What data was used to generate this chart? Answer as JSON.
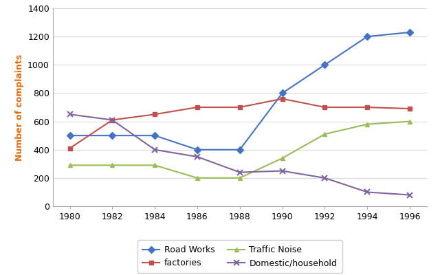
{
  "years": [
    1980,
    1982,
    1984,
    1986,
    1988,
    1990,
    1992,
    1994,
    1996
  ],
  "road_works": [
    500,
    500,
    500,
    400,
    400,
    800,
    1000,
    1200,
    1230
  ],
  "factories": [
    410,
    610,
    650,
    700,
    700,
    760,
    700,
    700,
    690
  ],
  "traffic_noise": [
    290,
    290,
    290,
    200,
    200,
    340,
    510,
    580,
    600
  ],
  "domestic_household": [
    650,
    610,
    400,
    350,
    240,
    250,
    200,
    100,
    80
  ],
  "road_works_color": "#4472C4",
  "factories_color": "#C0504D",
  "traffic_noise_color": "#9BBB59",
  "domestic_color": "#8064A2",
  "ylabel": "Number of complaints",
  "ylabel_color": "#E36C0A",
  "ylim": [
    0,
    1400
  ],
  "yticks": [
    0,
    200,
    400,
    600,
    800,
    1000,
    1200,
    1400
  ],
  "legend_labels": [
    "Road Works",
    "factories",
    "Traffic Noise",
    "Domestic/household"
  ],
  "background_color": "#FFFFFF",
  "grid_color": "#D9D9D9",
  "figsize": [
    6.4,
    4.0
  ],
  "dpi": 100
}
